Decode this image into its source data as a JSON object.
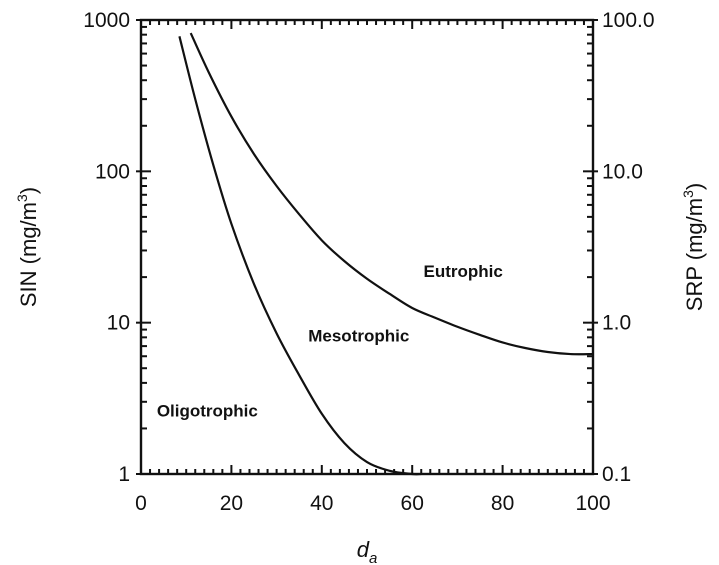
{
  "chart_data": {
    "type": "line",
    "xlabel": "d",
    "xlabel_subscript": "a",
    "ylabel_left": "SIN (mg/m",
    "ylabel_left_unit_sup": "3",
    "ylabel_left_close": ")",
    "ylabel_right": "SRP (mg/m",
    "ylabel_right_unit_sup": "3",
    "ylabel_right_close": ")",
    "xlim": [
      0,
      100
    ],
    "ylim_left": [
      1,
      1000
    ],
    "ylim_right": [
      0.1,
      100.0
    ],
    "yscale": "log",
    "grid": false,
    "x_ticks": [
      "0",
      "20",
      "40",
      "60",
      "80",
      "100"
    ],
    "y_left_ticks": [
      "1",
      "10",
      "100",
      "1000"
    ],
    "y_right_ticks": [
      "0.1",
      "1.0",
      "10.0",
      "100.0"
    ],
    "series": [
      {
        "x": [
          8.5,
          12,
          16,
          20,
          25,
          30,
          35,
          40,
          45,
          50,
          55,
          60,
          62
        ],
        "y": [
          780,
          300,
          110,
          45,
          18,
          8.5,
          4.5,
          2.5,
          1.6,
          1.2,
          1.05,
          1.0,
          1.0
        ]
      },
      {
        "x": [
          11,
          15,
          20,
          25,
          30,
          35,
          40,
          45,
          50,
          55,
          60,
          65,
          70,
          75,
          80,
          85,
          90,
          95,
          100
        ],
        "y": [
          820,
          450,
          230,
          130,
          80,
          52,
          35,
          25.5,
          19.5,
          15.5,
          12.5,
          10.8,
          9.4,
          8.3,
          7.4,
          6.8,
          6.4,
          6.2,
          6.2
        ]
      }
    ],
    "annotations": [
      {
        "text": "Oligotrophic",
        "x": 3.5,
        "y": 2.4
      },
      {
        "text": "Mesotrophic",
        "x": 37,
        "y": 7.5
      },
      {
        "text": "Eutrophic",
        "x": 62.5,
        "y": 20
      }
    ]
  }
}
